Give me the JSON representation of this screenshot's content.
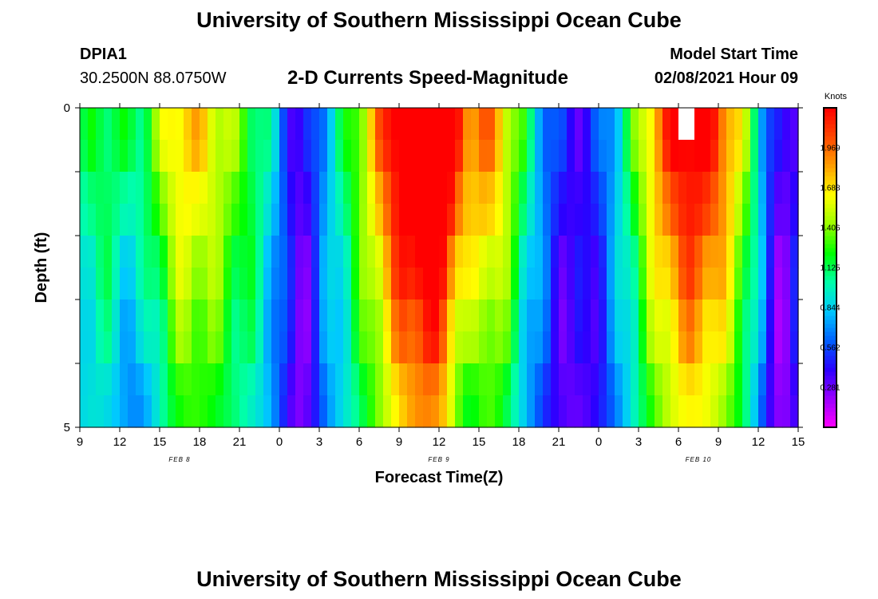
{
  "page_title": "University of Southern Mississippi Ocean Cube",
  "footer_title": "University of Southern Mississippi Ocean Cube",
  "station": {
    "id": "DPIA1",
    "coordinates": "30.2500N 88.0750W"
  },
  "model": {
    "label": "Model Start Time",
    "start": "02/08/2021 Hour 09"
  },
  "chart_data": {
    "type": "heatmap",
    "title": "2-D Currents Speed-Magnitude",
    "xlabel": "Forecast Time(Z)",
    "ylabel": "Depth (ft)",
    "x_ticks": [
      "9",
      "12",
      "15",
      "18",
      "21",
      "0",
      "3",
      "6",
      "9",
      "12",
      "15",
      "18",
      "21",
      "0",
      "3",
      "6",
      "9",
      "12",
      "15"
    ],
    "x_range_hours": [
      0,
      54
    ],
    "y_ticks": [
      "0",
      "5"
    ],
    "y_range": [
      0,
      5
    ],
    "day_labels": [
      {
        "label": "FEB 8",
        "hour": 7.5
      },
      {
        "label": "FEB 9",
        "hour": 27
      },
      {
        "label": "FEB 10",
        "hour": 46.5
      }
    ],
    "colorbar": {
      "unit": "Knots",
      "min": 0,
      "max": 2.25,
      "tick_labels": [
        "0.281",
        "0.562",
        "0.844",
        "1.125",
        "1.406",
        "1.688",
        "1.969"
      ],
      "colors": [
        "#ff00ff",
        "#9a00ff",
        "#2a00ff",
        "#0060ff",
        "#00c8ff",
        "#00ffaa",
        "#00ff00",
        "#9aff00",
        "#ffff00",
        "#ffa000",
        "#ff4800",
        "#ff0000"
      ]
    },
    "depth_layers": [
      0.25,
      0.75,
      1.25,
      1.75,
      2.25,
      2.75,
      3.25,
      3.75,
      4.25,
      4.75
    ],
    "time_hours_step": 0.6,
    "missing_cell": {
      "hour": 45.9,
      "layer": 0
    }
  }
}
